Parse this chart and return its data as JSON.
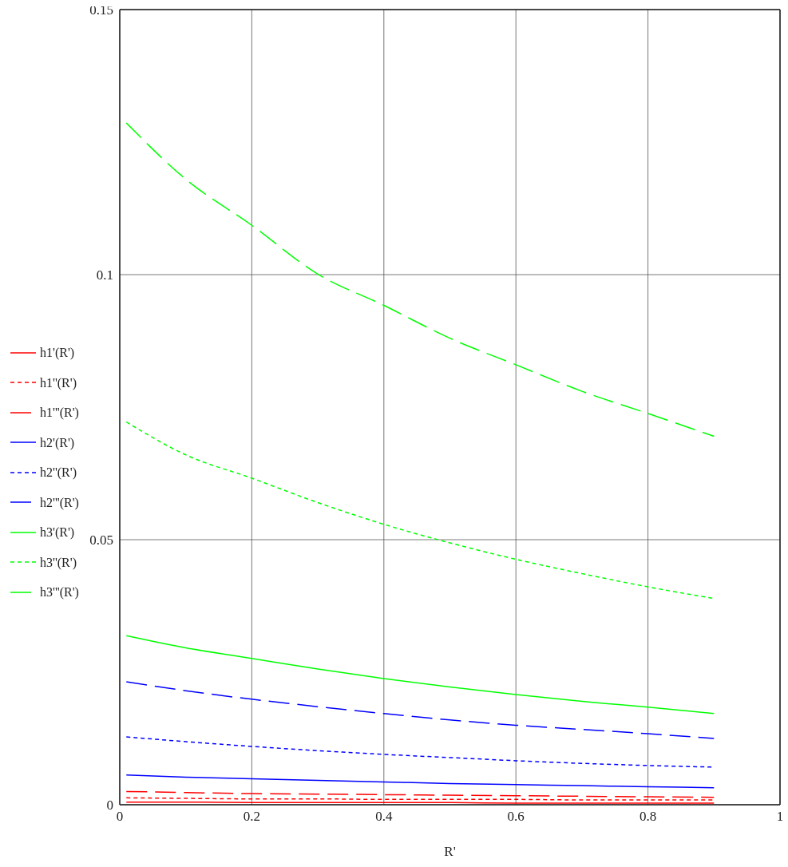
{
  "chart_data": {
    "type": "line",
    "xlabel": "R'",
    "x": [
      0.01,
      0.1,
      0.2,
      0.3,
      0.4,
      0.5,
      0.6,
      0.7,
      0.8,
      0.9
    ],
    "xlim": [
      0,
      1
    ],
    "xticks": [
      0,
      0.2,
      0.4,
      0.6,
      0.8,
      1
    ],
    "ylim": [
      0,
      0.15
    ],
    "yticks": [
      0,
      0.05,
      0.1,
      0.15
    ],
    "grid": true,
    "legend": "left",
    "marker": "none",
    "series": [
      {
        "name": "h1'(R')",
        "color": "#ff0000",
        "line_style": "solid",
        "values": [
          0.0005,
          0.0005,
          0.0004,
          0.0004,
          0.0004,
          0.0004,
          0.0003,
          0.0003,
          0.0003,
          0.0003
        ]
      },
      {
        "name": "h1''(R')",
        "color": "#ff0000",
        "line_style": "dotted",
        "values": [
          0.0013,
          0.0012,
          0.0011,
          0.0011,
          0.001,
          0.001,
          0.001,
          0.0009,
          0.0009,
          0.0009
        ]
      },
      {
        "name": "h1'''(R')",
        "color": "#ff0000",
        "line_style": "dashed",
        "values": [
          0.0025,
          0.0023,
          0.0021,
          0.002,
          0.0019,
          0.0018,
          0.0017,
          0.0016,
          0.0015,
          0.0014
        ]
      },
      {
        "name": "h2'(R')",
        "color": "#0000ff",
        "line_style": "solid",
        "values": [
          0.0056,
          0.0052,
          0.0049,
          0.0046,
          0.0043,
          0.004,
          0.0038,
          0.0036,
          0.0034,
          0.0032
        ]
      },
      {
        "name": "h2''(R')",
        "color": "#0000ff",
        "line_style": "dotted",
        "values": [
          0.0128,
          0.0119,
          0.011,
          0.0102,
          0.0095,
          0.0089,
          0.0083,
          0.0078,
          0.0074,
          0.0071
        ]
      },
      {
        "name": "h2'''(R')",
        "color": "#0000ff",
        "line_style": "dashed",
        "values": [
          0.0232,
          0.0215,
          0.0199,
          0.0185,
          0.0172,
          0.016,
          0.015,
          0.0142,
          0.0134,
          0.0125
        ]
      },
      {
        "name": "h3'(R')",
        "color": "#00ff00",
        "line_style": "solid",
        "values": [
          0.0319,
          0.0296,
          0.0276,
          0.0256,
          0.0238,
          0.0222,
          0.0208,
          0.0195,
          0.0184,
          0.0172
        ]
      },
      {
        "name": "h3''(R')",
        "color": "#00ff00",
        "line_style": "dotted",
        "values": [
          0.0722,
          0.066,
          0.0616,
          0.057,
          0.0529,
          0.0494,
          0.0463,
          0.0436,
          0.0411,
          0.0389
        ]
      },
      {
        "name": "h3'''(R')",
        "color": "#00ff00",
        "line_style": "dashed",
        "values": [
          0.1286,
          0.118,
          0.1093,
          0.1001,
          0.0942,
          0.088,
          0.083,
          0.078,
          0.0738,
          0.0695
        ]
      }
    ]
  }
}
